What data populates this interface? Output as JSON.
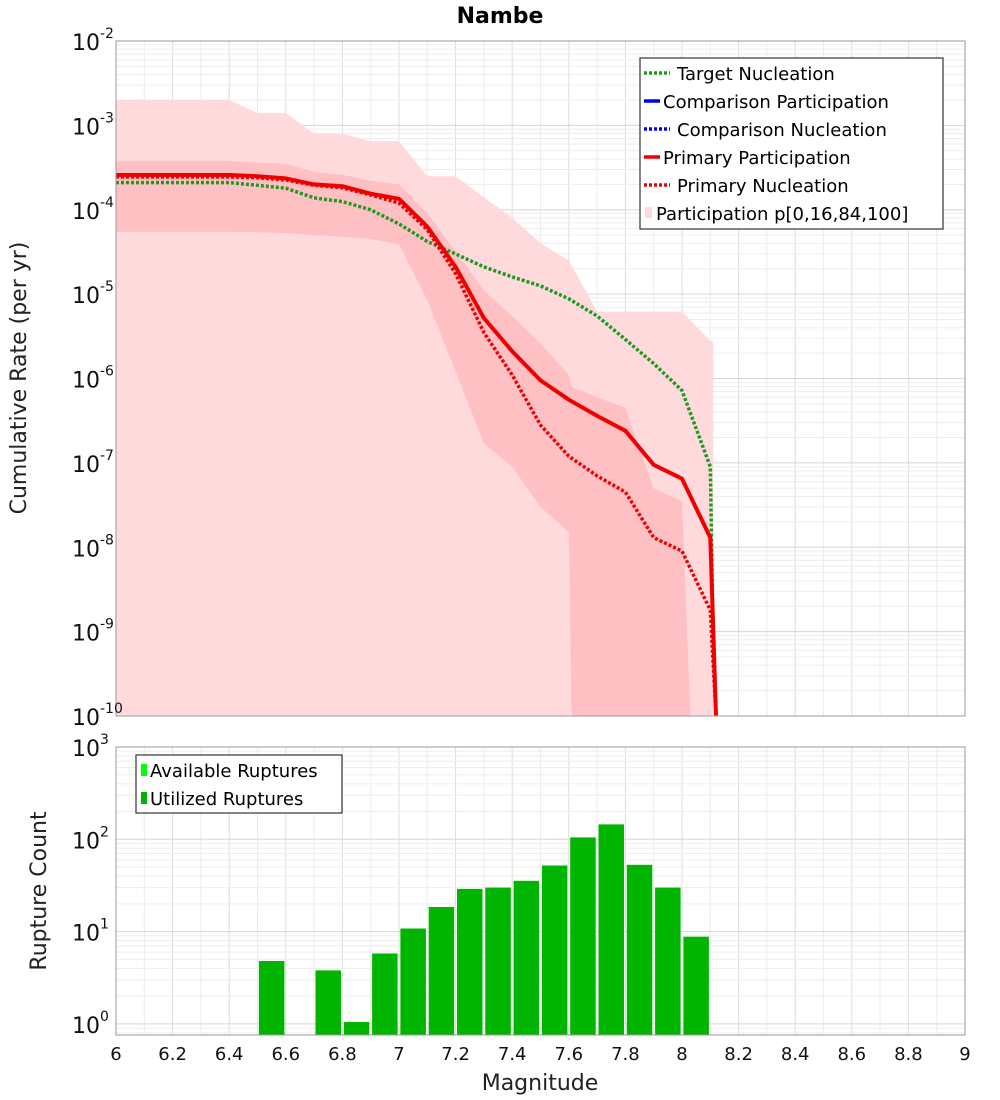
{
  "chart_data": [
    {
      "type": "line",
      "title": "Nambe",
      "xlabel": "",
      "ylabel": "Cumulative Rate (per yr)",
      "xlim": [
        6,
        9
      ],
      "ylim_log10": [
        -10,
        -2
      ],
      "yscale": "log",
      "grid": true,
      "legend_position": "top-right",
      "legend": [
        "Target Nucleation",
        "Comparison Participation",
        "Comparison Nucleation",
        "Primary Participation",
        "Primary Nucleation",
        "Participation p[0,16,84,100]"
      ],
      "x": [
        6.0,
        6.1,
        6.2,
        6.3,
        6.4,
        6.5,
        6.6,
        6.7,
        6.8,
        6.9,
        7.0,
        7.1,
        7.2,
        7.3,
        7.4,
        7.5,
        7.6,
        7.7,
        7.8,
        7.9,
        8.0,
        8.1,
        8.13
      ],
      "series": [
        {
          "name": "Target Nucleation",
          "style": "dotted",
          "color": "#1e9a1e",
          "x": [
            6.0,
            6.1,
            6.2,
            6.3,
            6.4,
            6.5,
            6.6,
            6.7,
            6.8,
            6.9,
            7.0,
            7.1,
            7.2,
            7.3,
            7.4,
            7.5,
            7.6,
            7.7,
            7.8,
            7.9,
            8.0,
            8.1,
            8.11,
            8.12
          ],
          "values": [
            0.00021,
            0.00021,
            0.00021,
            0.00021,
            0.00021,
            0.000195,
            0.00018,
            0.000138,
            0.000125,
            0.0001,
            6.8e-05,
            4.2e-05,
            3e-05,
            2.1e-05,
            1.6e-05,
            1.25e-05,
            8.8e-06,
            5.5e-06,
            2.9e-06,
            1.5e-06,
            7.2e-07,
            9e-08,
            1e-09,
            1e-10
          ]
        },
        {
          "name": "Comparison Participation",
          "style": "solid",
          "color": "#0000ee",
          "x": [],
          "values": []
        },
        {
          "name": "Comparison Nucleation",
          "style": "dotted",
          "color": "#0000ee",
          "x": [],
          "values": []
        },
        {
          "name": "Primary Participation",
          "style": "solid",
          "color": "#ee0000",
          "x": [
            6.0,
            6.1,
            6.2,
            6.3,
            6.4,
            6.5,
            6.6,
            6.7,
            6.8,
            6.9,
            7.0,
            7.1,
            7.2,
            7.3,
            7.4,
            7.5,
            7.6,
            7.7,
            7.8,
            7.9,
            8.0,
            8.1,
            8.12
          ],
          "values": [
            0.000258,
            0.000258,
            0.000258,
            0.000258,
            0.000258,
            0.00025,
            0.000235,
            0.0002,
            0.00019,
            0.000155,
            0.000135,
            6.3e-05,
            2.1e-05,
            5.2e-06,
            2.1e-06,
            9.5e-07,
            5.6e-07,
            3.6e-07,
            2.4e-07,
            9.5e-08,
            6.5e-08,
            1.3e-08,
            1e-10
          ]
        },
        {
          "name": "Primary Nucleation",
          "style": "dotted",
          "color": "#ee0000",
          "x": [
            6.0,
            6.1,
            6.2,
            6.3,
            6.4,
            6.5,
            6.6,
            6.7,
            6.8,
            6.9,
            7.0,
            7.1,
            7.2,
            7.3,
            7.4,
            7.5,
            7.6,
            7.7,
            7.8,
            7.9,
            8.0,
            8.1,
            8.12
          ],
          "values": [
            0.000245,
            0.000245,
            0.000245,
            0.000245,
            0.000245,
            0.00024,
            0.000225,
            0.000195,
            0.000182,
            0.00015,
            0.00012,
            5.8e-05,
            1.75e-05,
            3.5e-06,
            1.1e-06,
            2.8e-07,
            1.2e-07,
            7e-08,
            4.5e-08,
            1.3e-08,
            9e-09,
            1.8e-09,
            1e-10
          ]
        }
      ],
      "bands": [
        {
          "name": "Participation p0-p100",
          "color": "#ffdadd",
          "x": [
            6.0,
            6.1,
            6.2,
            6.3,
            6.4,
            6.5,
            6.6,
            6.7,
            6.8,
            6.9,
            7.0,
            7.1,
            7.2,
            7.3,
            7.4,
            7.5,
            7.6,
            7.7,
            7.8,
            7.9,
            8.0,
            8.1,
            8.11
          ],
          "lower": [
            1e-10,
            1e-10,
            1e-10,
            1e-10,
            1e-10,
            1e-10,
            1e-10,
            1e-10,
            1e-10,
            1e-10,
            1e-10,
            1e-10,
            1e-10,
            1e-10,
            1e-10,
            1e-10,
            1e-10,
            1e-10,
            1e-10,
            1e-10,
            1e-10,
            1e-10,
            1e-10
          ],
          "upper": [
            0.002,
            0.002,
            0.002,
            0.002,
            0.002,
            0.0014,
            0.0014,
            0.0008,
            0.0008,
            0.00065,
            0.00065,
            0.00025,
            0.00025,
            0.00014,
            8e-05,
            4e-05,
            2.5e-05,
            6.2e-06,
            6.2e-06,
            6.2e-06,
            6.2e-06,
            2.8e-06,
            2.8e-06
          ]
        },
        {
          "name": "Participation p16-p84",
          "color": "#ffc0c4",
          "x": [
            6.0,
            6.1,
            6.2,
            6.3,
            6.4,
            6.5,
            6.6,
            6.7,
            6.8,
            6.9,
            7.0,
            7.1,
            7.2,
            7.3,
            7.4,
            7.5,
            7.6,
            7.61,
            7.7,
            7.8,
            7.9,
            8.0,
            8.03
          ],
          "lower": [
            5.5e-05,
            5.5e-05,
            5.5e-05,
            5.5e-05,
            5.5e-05,
            5.4e-05,
            5.3e-05,
            5e-05,
            4.8e-05,
            4.5e-05,
            3.9e-05,
            8.5e-06,
            1.2e-06,
            1.7e-07,
            9e-08,
            3e-08,
            1.5e-08,
            1e-10,
            1e-10,
            1e-10,
            1e-10,
            1e-10,
            1e-10
          ],
          "upper": [
            0.00038,
            0.00038,
            0.00038,
            0.00038,
            0.00038,
            0.00036,
            0.00035,
            0.00028,
            0.00026,
            0.00022,
            0.0002,
            9e-05,
            3.2e-05,
            1.1e-05,
            5.5e-06,
            2.6e-06,
            1.1e-06,
            8e-07,
            6e-07,
            4.5e-07,
            5e-08,
            3.5e-08,
            1e-10
          ]
        }
      ]
    },
    {
      "type": "bar",
      "title": "",
      "xlabel": "Magnitude",
      "ylabel": "Rupture Count",
      "xlim": [
        6,
        9
      ],
      "ylim_log10": [
        -0.12,
        3
      ],
      "yscale": "log",
      "grid": true,
      "legend_position": "top-left",
      "legend": [
        "Available Ruptures",
        "Utilized Ruptures"
      ],
      "bar_width": 0.09,
      "series": [
        {
          "name": "Utilized Ruptures",
          "color": "#00b400",
          "x": [
            6.55,
            6.75,
            6.85,
            6.95,
            7.05,
            7.15,
            7.25,
            7.35,
            7.45,
            7.55,
            7.65,
            7.75,
            7.85,
            7.95,
            8.05
          ],
          "values": [
            4.8,
            3.8,
            1.05,
            5.8,
            10.8,
            18.5,
            29,
            30,
            35.5,
            52,
            105,
            145,
            53,
            30,
            8.8
          ]
        }
      ]
    }
  ],
  "axes": {
    "x_ticks": [
      "6",
      "6.2",
      "6.4",
      "6.6",
      "6.8",
      "7",
      "7.2",
      "7.4",
      "7.6",
      "7.8",
      "8",
      "8.2",
      "8.4",
      "8.6",
      "8.8",
      "9"
    ],
    "top_y_ticks": [
      {
        "base": "10",
        "exp": "-2"
      },
      {
        "base": "10",
        "exp": "-3"
      },
      {
        "base": "10",
        "exp": "-4"
      },
      {
        "base": "10",
        "exp": "-5"
      },
      {
        "base": "10",
        "exp": "-6"
      },
      {
        "base": "10",
        "exp": "-7"
      },
      {
        "base": "10",
        "exp": "-8"
      },
      {
        "base": "10",
        "exp": "-9"
      },
      {
        "base": "10",
        "exp": "-10"
      }
    ],
    "bottom_y_ticks": [
      {
        "base": "10",
        "exp": "3"
      },
      {
        "base": "10",
        "exp": "2"
      },
      {
        "base": "10",
        "exp": "1"
      },
      {
        "base": "10",
        "exp": "0"
      }
    ]
  },
  "colors": {
    "target_nucleation": "#1e9a1e",
    "comparison": "#0000ee",
    "primary": "#ee0000",
    "band_outer": "#ffdadd",
    "band_inner": "#ffc0c4",
    "available_ruptures": "#00ff00",
    "utilized_ruptures": "#00b400"
  }
}
